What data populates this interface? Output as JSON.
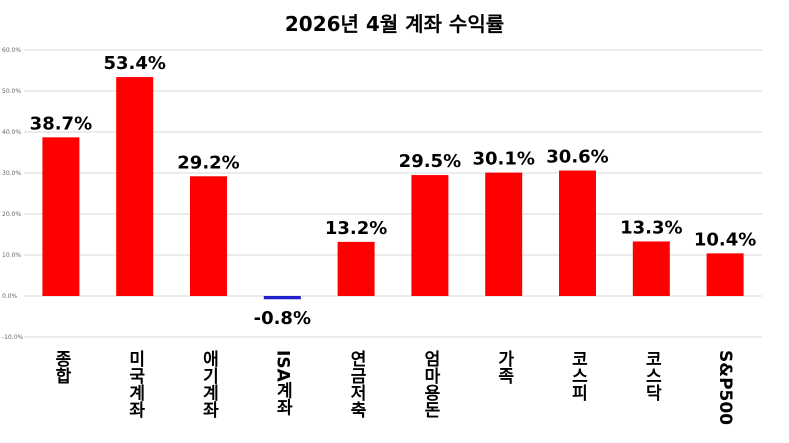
{
  "chart_data": {
    "type": "bar",
    "title": "2026년 4월 계좌 수익률",
    "categories": [
      "종합",
      "미국계좌",
      "애기계좌",
      "ISA계좌",
      "연금저축",
      "엄마용돈",
      "가족",
      "코스피",
      "코스닥",
      "S&P500"
    ],
    "values": [
      38.7,
      53.4,
      29.2,
      -0.8,
      13.2,
      29.5,
      30.1,
      30.6,
      13.3,
      10.4
    ],
    "data_labels": [
      "38.7%",
      "53.4%",
      "29.2%",
      "-0.8%",
      "13.2%",
      "29.5%",
      "30.1%",
      "30.6%",
      "13.3%",
      "10.4%"
    ],
    "bar_colors": [
      "#ff0000",
      "#ff0000",
      "#ff0000",
      "#1f1fcc",
      "#ff0000",
      "#ff0000",
      "#ff0000",
      "#ff0000",
      "#ff0000",
      "#ff0000"
    ],
    "yticks": [
      "60.0%",
      "50.0%",
      "40.0%",
      "30.0%",
      "20.0%",
      "10.0%",
      "0.0%",
      "-10.0%"
    ],
    "ytick_values": [
      60,
      50,
      40,
      30,
      20,
      10,
      0,
      -10
    ],
    "ylim": [
      -10,
      60
    ],
    "grid": true,
    "legend": "none",
    "xlabel": "",
    "ylabel": ""
  }
}
